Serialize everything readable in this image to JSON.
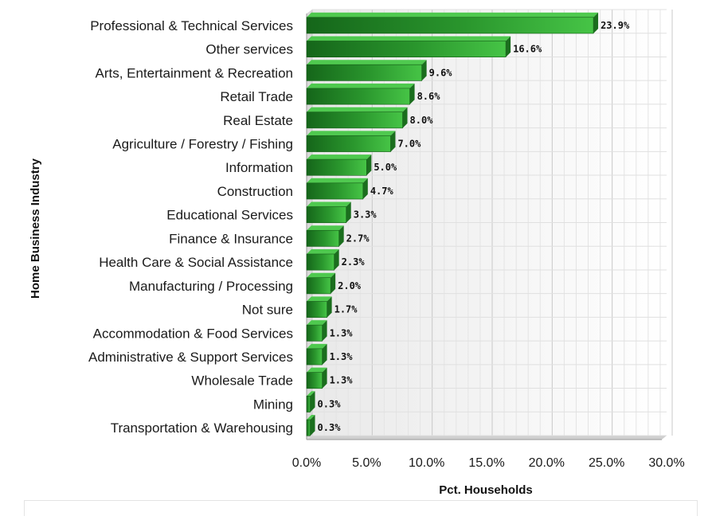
{
  "chart_data": {
    "type": "bar",
    "orientation": "horizontal",
    "categories": [
      "Professional & Technical Services",
      "Other services",
      "Arts, Entertainment & Recreation",
      "Retail Trade",
      "Real Estate",
      "Agriculture / Forestry / Fishing",
      "Information",
      "Construction",
      "Educational Services",
      "Finance & Insurance",
      "Health Care & Social Assistance",
      "Manufacturing / Processing",
      "Not sure",
      "Accommodation  & Food Services",
      "Administrative & Support Services",
      "Wholesale Trade",
      "Mining",
      "Transportation & Warehousing"
    ],
    "values": [
      23.9,
      16.6,
      9.6,
      8.6,
      8.0,
      7.0,
      5.0,
      4.7,
      3.3,
      2.7,
      2.3,
      2.0,
      1.7,
      1.3,
      1.3,
      1.3,
      0.3,
      0.3
    ],
    "value_labels": [
      "23.9%",
      "16.6%",
      "9.6%",
      "8.6%",
      "8.0%",
      "7.0%",
      "5.0%",
      "4.7%",
      "3.3%",
      "2.7%",
      "2.3%",
      "2.0%",
      "1.7%",
      "1.3%",
      "1.3%",
      "1.3%",
      "0.3%",
      "0.3%"
    ],
    "xlabel": "Pct. Households",
    "ylabel": "Home Business Industry",
    "xlim": [
      0,
      30
    ],
    "xticks": [
      0,
      5,
      10,
      15,
      20,
      25,
      30
    ],
    "xtick_labels": [
      "0.0%",
      "5.0%",
      "10.0%",
      "15.0%",
      "20.0%",
      "25.0%",
      "30.0%"
    ],
    "grid": true,
    "bar_color": "#2e9b2e"
  }
}
